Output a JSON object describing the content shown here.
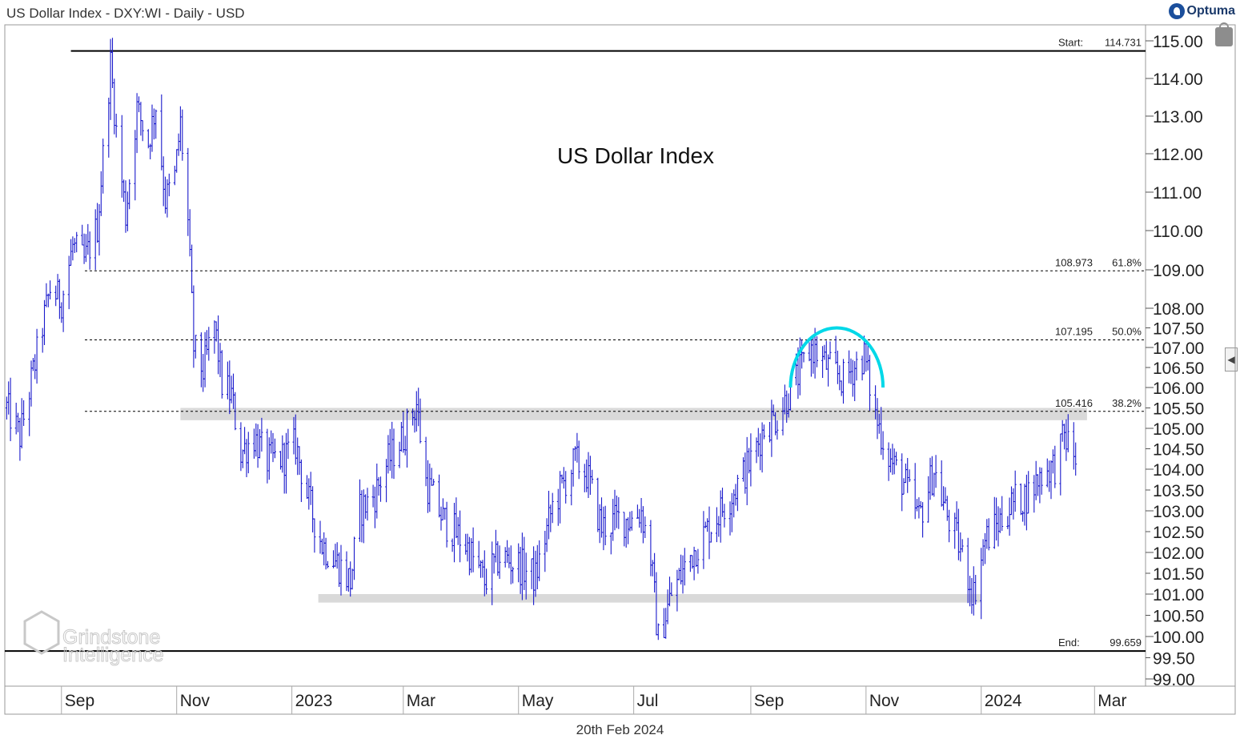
{
  "header": {
    "title": "US Dollar Index - DXY:WI - Daily - USD",
    "brand": "Optuma"
  },
  "footer": {
    "date": "20th Feb 2024"
  },
  "watermark": {
    "line1": "Grindstone",
    "line2": "Intelligence"
  },
  "icons": {
    "lock": "lock-icon",
    "arrow": "chevron-left-icon"
  },
  "colors": {
    "price_bars": "#1a1acc",
    "arc": "#00d8e8",
    "zone": "#d9d9d9",
    "level_lines": "#000000"
  },
  "chart_data": {
    "type": "ohlc",
    "title": "US Dollar Index",
    "ylim": [
      98.9,
      115.3
    ],
    "y_ticks": [
      "115.00",
      "114.00",
      "113.00",
      "112.00",
      "111.00",
      "110.00",
      "109.00",
      "108.00",
      "107.50",
      "107.00",
      "106.50",
      "106.00",
      "105.50",
      "105.00",
      "104.50",
      "104.00",
      "103.50",
      "103.00",
      "102.50",
      "102.00",
      "101.50",
      "101.00",
      "100.50",
      "100.00",
      "99.50",
      "99.00"
    ],
    "x_ticks": [
      "Sep",
      "Nov",
      "2023",
      "Mar",
      "May",
      "Jul",
      "Sep",
      "Nov",
      "2024",
      "Mar"
    ],
    "x_range": [
      "2022-08-02",
      "2024-03-28"
    ],
    "levels": [
      {
        "kind": "start",
        "label": "Start:",
        "value": "114.731",
        "y": 114.731
      },
      {
        "kind": "fib",
        "label": "108.973",
        "pct": "61.8%",
        "y": 108.973
      },
      {
        "kind": "fib",
        "label": "107.195",
        "pct": "50.0%",
        "y": 107.195
      },
      {
        "kind": "fib",
        "label": "105.416",
        "pct": "38.2%",
        "y": 105.416
      },
      {
        "kind": "end",
        "label": "End:",
        "value": "99.659",
        "y": 99.659
      }
    ],
    "zones": [
      {
        "from": "2022-11-03",
        "to": "2024-02-26",
        "low": 105.2,
        "high": 105.5
      },
      {
        "from": "2023-01-15",
        "to": "2024-01-01",
        "low": 100.8,
        "high": 101.0
      }
    ],
    "arc": {
      "from": "2023-09-22",
      "to": "2023-11-10",
      "base": 106.0,
      "top": 107.5
    },
    "series_path": [
      [
        "2022-08-03",
        105.5
      ],
      [
        "2022-08-10",
        104.8
      ],
      [
        "2022-08-18",
        106.6
      ],
      [
        "2022-08-26",
        108.5
      ],
      [
        "2022-09-01",
        108.2
      ],
      [
        "2022-09-07",
        109.6
      ],
      [
        "2022-09-13",
        109.2
      ],
      [
        "2022-09-20",
        110.1
      ],
      [
        "2022-09-27",
        114.4
      ],
      [
        "2022-09-30",
        112.6
      ],
      [
        "2022-10-05",
        110.4
      ],
      [
        "2022-10-11",
        113.2
      ],
      [
        "2022-10-17",
        112.3
      ],
      [
        "2022-10-21",
        113.3
      ],
      [
        "2022-10-26",
        110.8
      ],
      [
        "2022-10-31",
        111.4
      ],
      [
        "2022-11-03",
        112.8
      ],
      [
        "2022-11-07",
        110.2
      ],
      [
        "2022-11-10",
        107.0
      ],
      [
        "2022-11-15",
        106.4
      ],
      [
        "2022-11-21",
        107.6
      ],
      [
        "2022-11-25",
        106.1
      ],
      [
        "2022-11-30",
        105.8
      ],
      [
        "2022-12-05",
        104.4
      ],
      [
        "2022-12-12",
        104.8
      ],
      [
        "2022-12-19",
        104.2
      ],
      [
        "2022-12-28",
        104.3
      ],
      [
        "2023-01-03",
        104.6
      ],
      [
        "2023-01-10",
        103.2
      ],
      [
        "2023-01-17",
        102.2
      ],
      [
        "2023-01-26",
        101.7
      ],
      [
        "2023-02-01",
        101.3
      ],
      [
        "2023-02-06",
        103.0
      ],
      [
        "2023-02-14",
        103.4
      ],
      [
        "2023-02-21",
        104.2
      ],
      [
        "2023-03-01",
        104.8
      ],
      [
        "2023-03-08",
        105.6
      ],
      [
        "2023-03-13",
        103.7
      ],
      [
        "2023-03-22",
        102.8
      ],
      [
        "2023-04-03",
        102.2
      ],
      [
        "2023-04-13",
        101.3
      ],
      [
        "2023-04-21",
        101.9
      ],
      [
        "2023-05-01",
        101.7
      ],
      [
        "2023-05-10",
        101.4
      ],
      [
        "2023-05-19",
        103.1
      ],
      [
        "2023-05-31",
        104.2
      ],
      [
        "2023-06-06",
        103.9
      ],
      [
        "2023-06-14",
        102.6
      ],
      [
        "2023-06-23",
        102.8
      ],
      [
        "2023-06-30",
        102.8
      ],
      [
        "2023-07-05",
        103.0
      ],
      [
        "2023-07-10",
        101.9
      ],
      [
        "2023-07-14",
        99.9
      ],
      [
        "2023-07-21",
        101.0
      ],
      [
        "2023-08-01",
        102.0
      ],
      [
        "2023-08-10",
        102.6
      ],
      [
        "2023-08-22",
        103.4
      ],
      [
        "2023-09-01",
        104.2
      ],
      [
        "2023-09-08",
        105.0
      ],
      [
        "2023-09-15",
        105.3
      ],
      [
        "2023-09-25",
        106.2
      ],
      [
        "2023-10-03",
        107.0
      ],
      [
        "2023-10-12",
        106.5
      ],
      [
        "2023-10-20",
        106.2
      ],
      [
        "2023-10-31",
        106.8
      ],
      [
        "2023-11-06",
        105.3
      ],
      [
        "2023-11-14",
        104.2
      ],
      [
        "2023-11-22",
        103.6
      ],
      [
        "2023-11-29",
        102.8
      ],
      [
        "2023-12-07",
        104.0
      ],
      [
        "2023-12-13",
        103.0
      ],
      [
        "2023-12-20",
        102.2
      ],
      [
        "2023-12-28",
        101.0
      ],
      [
        "2024-01-03",
        102.3
      ],
      [
        "2024-01-10",
        102.7
      ],
      [
        "2024-01-18",
        103.2
      ],
      [
        "2024-01-26",
        103.4
      ],
      [
        "2024-02-02",
        103.9
      ],
      [
        "2024-02-09",
        104.1
      ],
      [
        "2024-02-14",
        104.8
      ],
      [
        "2024-02-20",
        104.3
      ]
    ]
  }
}
